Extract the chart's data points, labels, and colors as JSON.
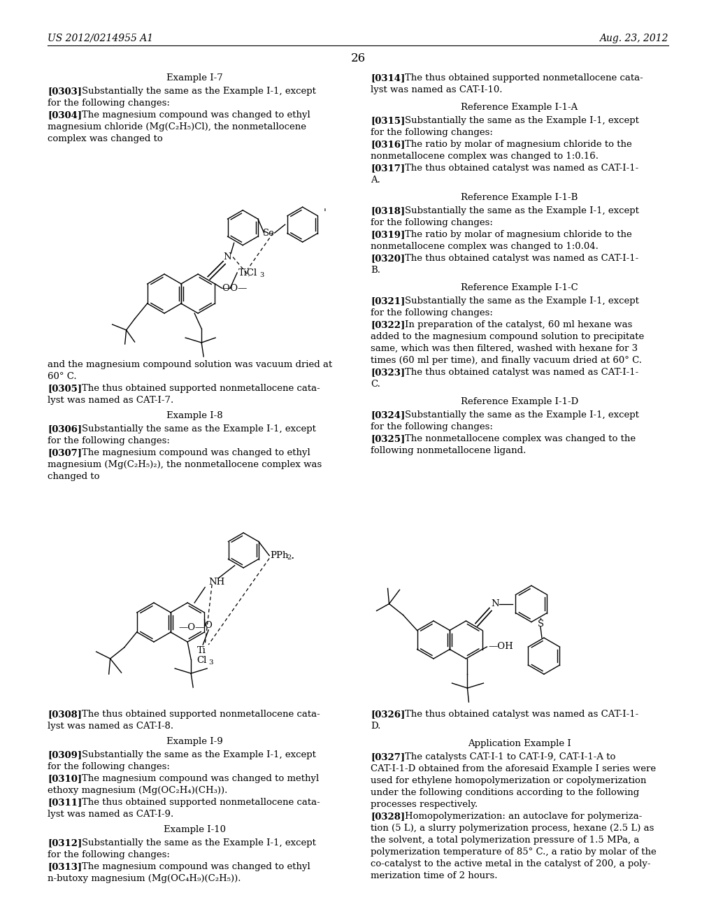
{
  "page_number": "26",
  "patent_number": "US 2012/0214955 A1",
  "patent_date": "Aug. 23, 2012",
  "bg_color": "#ffffff",
  "text_color": "#000000"
}
